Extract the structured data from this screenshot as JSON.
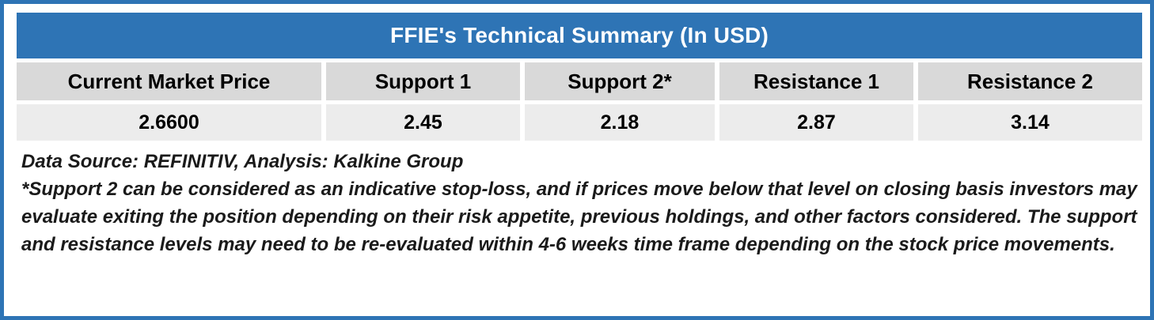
{
  "table": {
    "title": "FFIE's Technical Summary (In USD)",
    "columns": [
      "Current Market Price",
      "Support 1",
      "Support 2*",
      "Resistance 1",
      "Resistance 2"
    ],
    "values": [
      "2.6600",
      "2.45",
      "2.18",
      "2.87",
      "3.14"
    ]
  },
  "notes": {
    "source_line": "Data Source: REFINITIV, Analysis: Kalkine Group",
    "disclaimer": "*Support 2 can be considered as an indicative stop-loss, and if prices move below that level on closing basis investors may evaluate exiting the position depending on their risk appetite, previous holdings, and other factors considered. The support and resistance levels may need to be re-evaluated within 4-6 weeks time frame depending on the stock price movements."
  },
  "colors": {
    "accent_blue": "#2E74B5",
    "header_text": "#FFFFFF",
    "column_header_bg": "#D9D9D9",
    "value_row_bg": "#ECECEC",
    "body_text": "#1A1A1A"
  }
}
